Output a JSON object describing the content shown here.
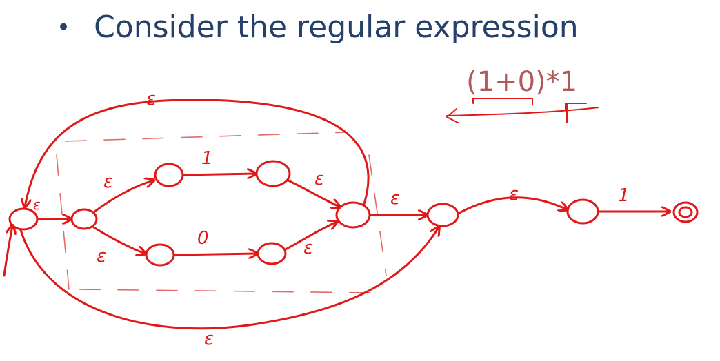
{
  "slide": {
    "bullet": "Consider the regular expression",
    "regex": "(1+0)*1"
  },
  "diagram": {
    "colors": {
      "ink": "#e01818",
      "heading": "#24406b",
      "regex": "#b05a5a"
    },
    "labels": {
      "top_loop": "ε",
      "start_loop": "ε",
      "upper_in": "ε",
      "upper_symbol": "1",
      "upper_out": "ε",
      "lower_in": "ε",
      "lower_symbol": "0",
      "lower_out": "ε",
      "join": "ε",
      "mid": "ε",
      "final_symbol": "1",
      "bottom_bypass": "ε"
    }
  }
}
